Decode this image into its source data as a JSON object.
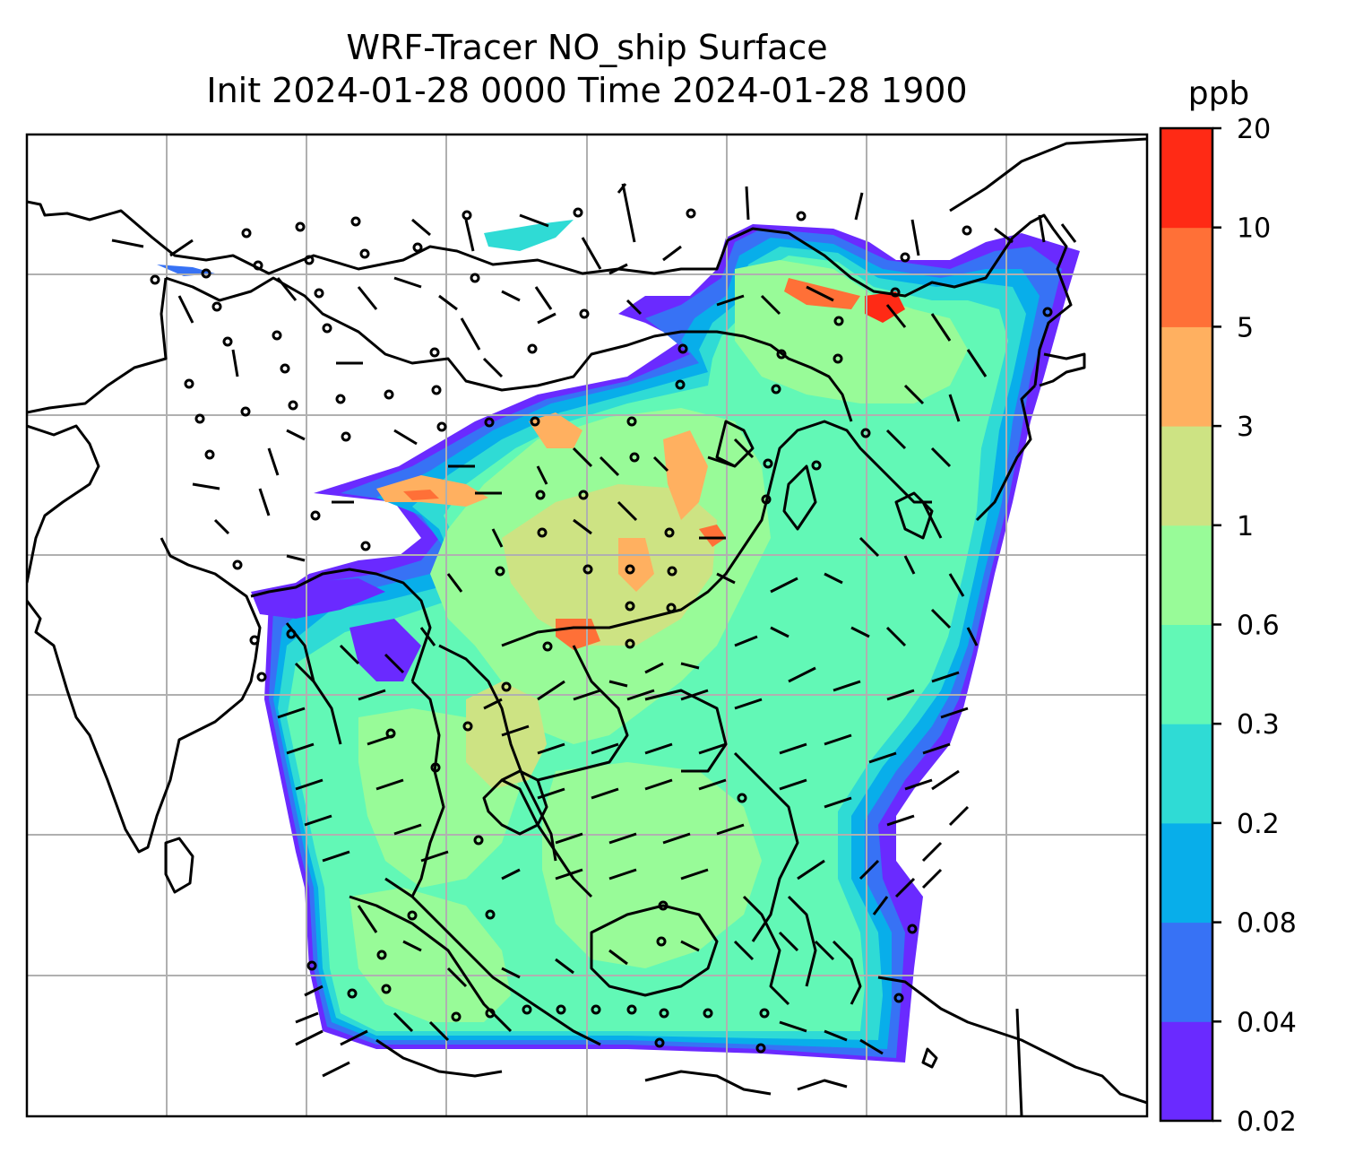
{
  "title": {
    "line1": "WRF-Tracer NO_ship Surface",
    "line2": "Init 2024-01-28 0000 Time 2024-01-28 1900"
  },
  "colorbar": {
    "unit": "ppb",
    "levels": [
      "0.02",
      "0.04",
      "0.08",
      "0.2",
      "0.3",
      "0.6",
      "1",
      "3",
      "5",
      "10",
      "20"
    ],
    "colors": [
      "#6a2aff",
      "#3772f5",
      "#08aeea",
      "#2fdbd5",
      "#62f8b6",
      "#98fb98",
      "#cde383",
      "#ffb060",
      "#ff7037",
      "#ff2a15"
    ]
  },
  "palette": {
    "coast": "#000000",
    "grid": "#b0b0b0",
    "background": "#ffffff"
  }
}
